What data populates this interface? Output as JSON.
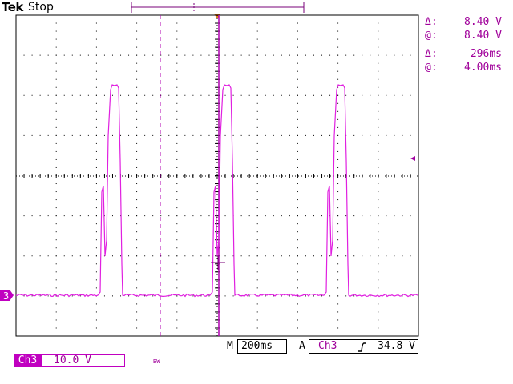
{
  "header": {
    "brand": "Tek",
    "acquisition_state": "Stop"
  },
  "readouts": [
    {
      "label": "Δ:",
      "value": "8.40 V"
    },
    {
      "label": "@:",
      "value": "8.40 V"
    },
    {
      "label": "Δ:",
      "value": "296ms"
    },
    {
      "label": "@:",
      "value": "4.00ms"
    }
  ],
  "timebase": {
    "mode": "M",
    "scale": "200ms"
  },
  "trigger": {
    "mode": "A",
    "source": "Ch3",
    "slope_icon": "rising-edge-icon",
    "level": "34.8 V"
  },
  "channel": {
    "marker": "3",
    "name": "Ch3",
    "scale": "10.0 V",
    "bandwidth_flag": "BW",
    "color": "#c000c0"
  },
  "colors": {
    "trace": "#e020e0",
    "cursor": "#b000b0",
    "trigger_marker": "#e07a1a",
    "graticule": "#000000"
  }
}
